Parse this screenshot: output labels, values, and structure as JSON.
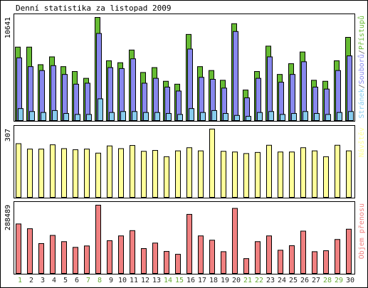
{
  "title": "Denní statistika za listopad 2009",
  "colors": {
    "background": "#ffffff",
    "frame": "#000000",
    "hits": "#66bb33",
    "files": "#8888ee",
    "pages": "#88ccee",
    "visits": "#ffff99",
    "kbytes": "#f08080",
    "weekday_label": "#222222",
    "weekend_label": "#66aa33"
  },
  "chart_data": [
    {
      "type": "bar",
      "panel": "hits-files-pages",
      "y_axis_max_label": "10641",
      "ylim": [
        0,
        10641
      ],
      "legend": [
        "Stránek",
        "Souborů",
        "Přístupů"
      ],
      "legend_separator": "/",
      "categories": [
        "1",
        "2",
        "3",
        "4",
        "5",
        "6",
        "7",
        "8",
        "9",
        "10",
        "11",
        "12",
        "13",
        "14",
        "15",
        "16",
        "17",
        "18",
        "19",
        "20",
        "21",
        "22",
        "23",
        "24",
        "25",
        "26",
        "27",
        "28",
        "29",
        "30"
      ],
      "series": [
        {
          "name": "Přístupů",
          "values": [
            7600,
            7600,
            5800,
            6600,
            5600,
            5100,
            4400,
            10641,
            6200,
            6000,
            7300,
            5000,
            5500,
            4100,
            3800,
            8900,
            5600,
            5200,
            4200,
            10000,
            3200,
            5100,
            7700,
            4800,
            5900,
            7100,
            4200,
            4100,
            6200,
            8600
          ]
        },
        {
          "name": "Souborů",
          "values": [
            6500,
            5600,
            5200,
            5700,
            4800,
            3800,
            3900,
            9000,
            5500,
            5400,
            6400,
            3900,
            4400,
            3500,
            3100,
            7400,
            4500,
            4300,
            3400,
            9200,
            2400,
            4400,
            6600,
            4000,
            4800,
            6100,
            3500,
            3300,
            5200,
            6700
          ]
        },
        {
          "name": "Stránek",
          "values": [
            1300,
            1000,
            900,
            1100,
            800,
            700,
            700,
            2300,
            900,
            1000,
            1000,
            900,
            900,
            800,
            700,
            1300,
            900,
            1100,
            800,
            600,
            500,
            900,
            1000,
            700,
            800,
            1000,
            800,
            700,
            900,
            1000
          ]
        }
      ],
      "grid": false
    },
    {
      "type": "bar",
      "panel": "visits",
      "y_axis_max_label": "307",
      "ylim": [
        0,
        307
      ],
      "legend": [
        "Návštěv"
      ],
      "categories": [
        "1",
        "2",
        "3",
        "4",
        "5",
        "6",
        "7",
        "8",
        "9",
        "10",
        "11",
        "12",
        "13",
        "14",
        "15",
        "16",
        "17",
        "18",
        "19",
        "20",
        "21",
        "22",
        "23",
        "24",
        "25",
        "26",
        "27",
        "28",
        "29",
        "30"
      ],
      "series": [
        {
          "name": "Návštěv",
          "values": [
            242,
            218,
            218,
            237,
            220,
            215,
            218,
            200,
            232,
            220,
            234,
            208,
            212,
            184,
            210,
            224,
            210,
            307,
            208,
            205,
            198,
            203,
            235,
            205,
            205,
            224,
            210,
            184,
            235,
            210
          ]
        }
      ],
      "grid": false
    },
    {
      "type": "bar",
      "panel": "kbytes",
      "y_axis_max_label": "288489",
      "ylim": [
        0,
        288489
      ],
      "legend": [
        "Objem přenosu"
      ],
      "categories": [
        "1",
        "2",
        "3",
        "4",
        "5",
        "6",
        "7",
        "8",
        "9",
        "10",
        "11",
        "12",
        "13",
        "14",
        "15",
        "16",
        "17",
        "18",
        "19",
        "20",
        "21",
        "22",
        "23",
        "24",
        "25",
        "26",
        "27",
        "28",
        "29",
        "30"
      ],
      "series": [
        {
          "name": "Objem přenosu",
          "values": [
            210000,
            190000,
            128000,
            162000,
            136000,
            112000,
            118000,
            288489,
            140000,
            160000,
            182000,
            107000,
            130000,
            95000,
            83000,
            250000,
            160000,
            142000,
            94000,
            275000,
            65000,
            136000,
            160000,
            100000,
            119000,
            180000,
            94000,
            98000,
            145000,
            188000
          ]
        }
      ],
      "grid": false
    }
  ],
  "weekend_days": [
    1,
    7,
    8,
    14,
    15,
    21,
    22,
    28,
    29
  ]
}
